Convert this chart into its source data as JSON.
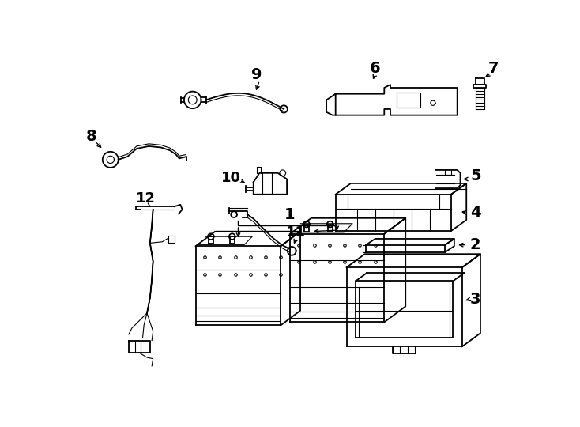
{
  "background_color": "#ffffff",
  "line_color": "#000000",
  "label_fontsize": 12,
  "figsize": [
    7.34,
    5.4
  ],
  "dpi": 100
}
